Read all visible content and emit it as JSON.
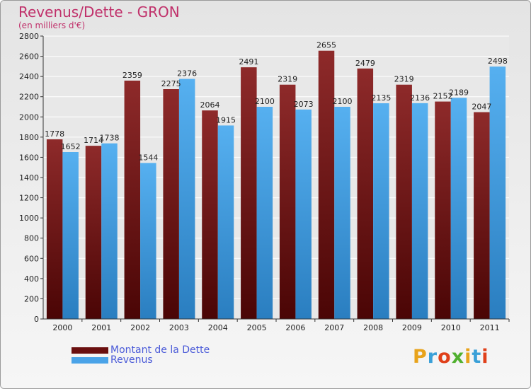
{
  "chart_data": {
    "type": "bar",
    "title": "Revenus/Dette - GRON",
    "subtitle": "(en milliers d'€)",
    "categories": [
      "2000",
      "2001",
      "2002",
      "2003",
      "2004",
      "2005",
      "2006",
      "2007",
      "2008",
      "2009",
      "2010",
      "2011"
    ],
    "series": [
      {
        "name": "Montant de la Dette",
        "color": "#7a1a1a",
        "values": [
          1778,
          1714,
          2359,
          2275,
          2064,
          2491,
          2319,
          2655,
          2479,
          2319,
          2152,
          2047
        ]
      },
      {
        "name": "Revenus",
        "color": "#4aa3e8",
        "values": [
          1652,
          1738,
          1544,
          2376,
          1915,
          2100,
          2073,
          2100,
          2135,
          2136,
          2189,
          2498
        ]
      }
    ],
    "ylim": [
      0,
      2800
    ],
    "yticks": [
      0,
      200,
      400,
      600,
      800,
      1000,
      1200,
      1400,
      1600,
      1800,
      2000,
      2200,
      2400,
      2600,
      2800
    ],
    "grid": true,
    "legend_position": "bottom-left"
  },
  "logo": {
    "text": "Proxiti",
    "letter_colors": [
      "#e8a31b",
      "#3aa0d8",
      "#e0401a",
      "#50b02f",
      "#e8a31b",
      "#3aa0d8",
      "#e0401a"
    ]
  }
}
